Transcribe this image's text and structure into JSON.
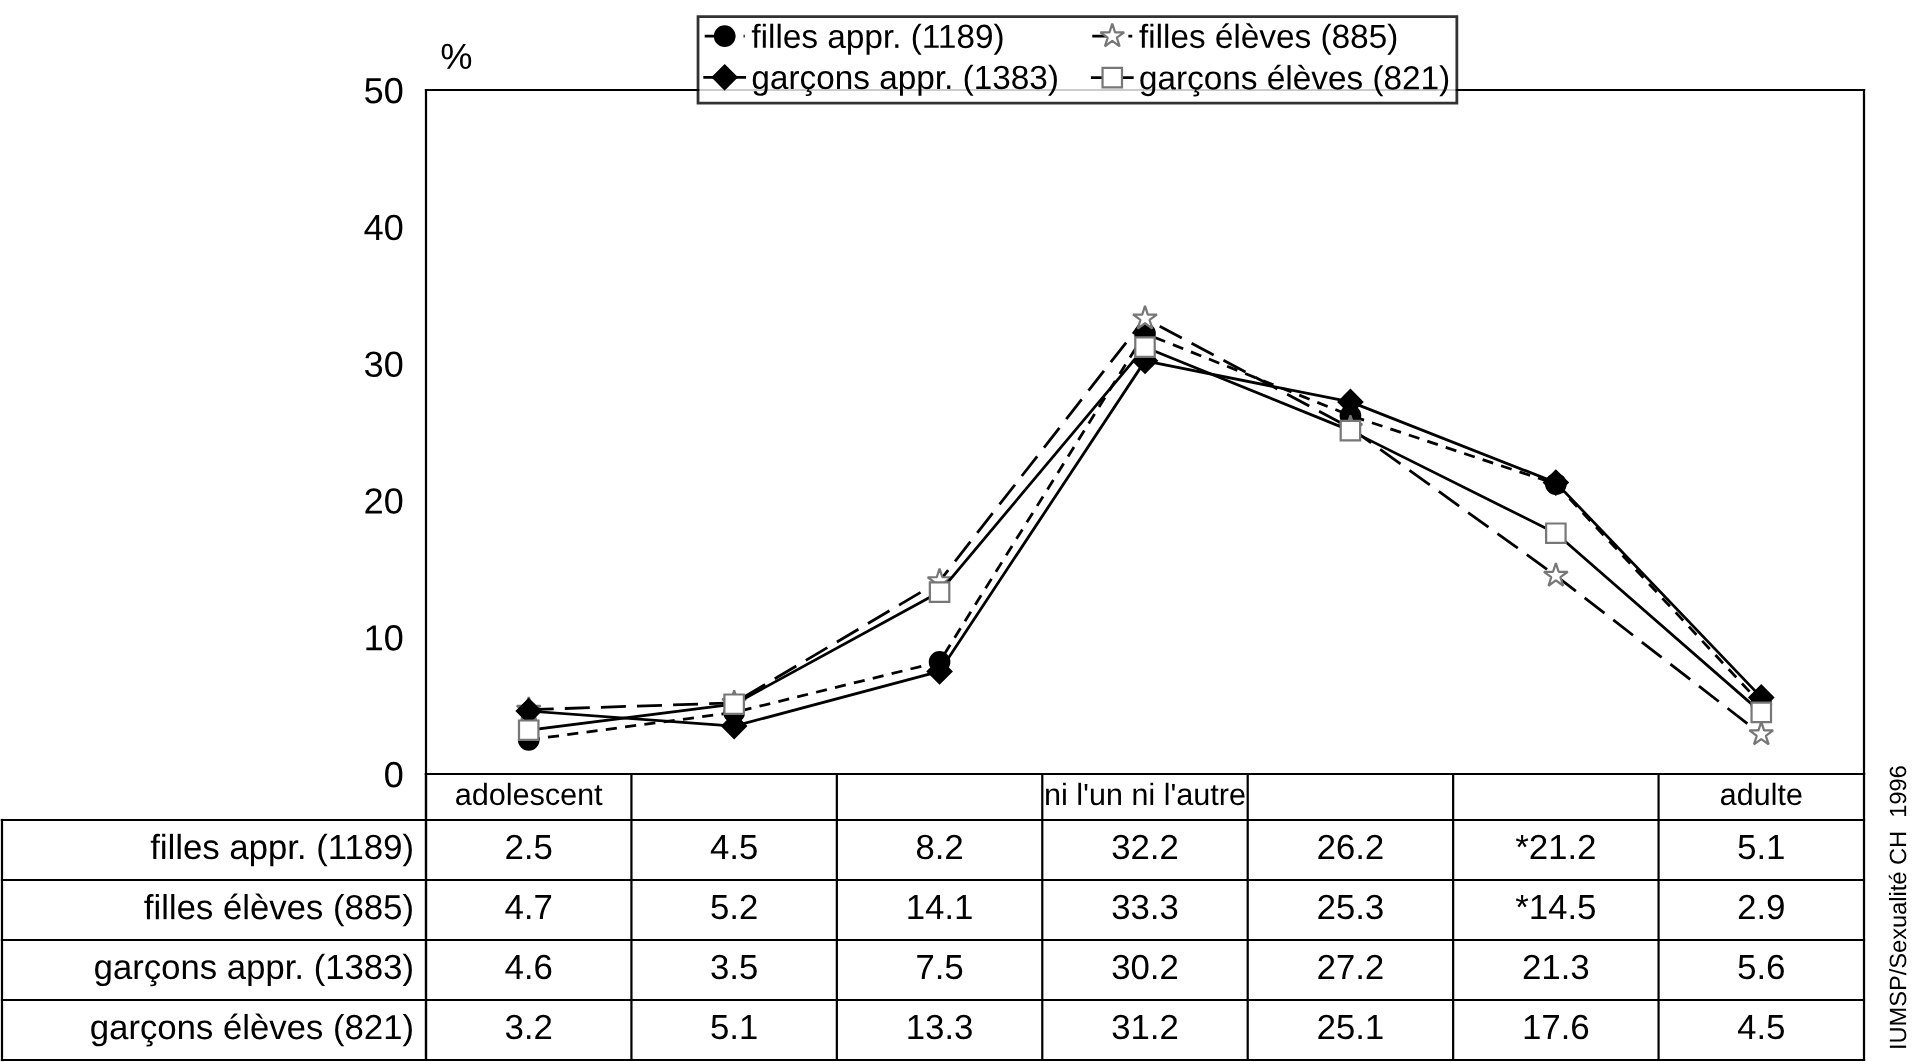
{
  "chart_data": {
    "type": "line",
    "ylabel": "%",
    "categories": [
      "adolescent",
      null,
      null,
      "ni l'un ni l'autre",
      null,
      null,
      "adulte"
    ],
    "ylim": [
      0,
      50
    ],
    "yticks": [
      0,
      10,
      20,
      30,
      40,
      50
    ],
    "grid": false,
    "legend": "top",
    "series": [
      {
        "name": "filles appr. (1189)",
        "color": "#000000",
        "marker": "circle",
        "line_style": "dashed",
        "values": [
          2.5,
          4.5,
          8.2,
          32.2,
          26.2,
          21.2,
          5.1
        ],
        "value_labels": [
          "2.5",
          "4.5",
          "8.2",
          "32.2",
          "26.2",
          "*21.2",
          "5.1"
        ]
      },
      {
        "name": "filles élèves (885)",
        "color": "#000000",
        "marker": "star",
        "line_style": "longdash",
        "values": [
          4.7,
          5.2,
          14.1,
          33.3,
          25.3,
          14.5,
          2.9
        ],
        "value_labels": [
          "4.7",
          "5.2",
          "14.1",
          "33.3",
          "25.3",
          "*14.5",
          "2.9"
        ]
      },
      {
        "name": "garçons appr. (1383)",
        "color": "#000000",
        "marker": "diamond",
        "line_style": "solid",
        "values": [
          4.6,
          3.5,
          7.5,
          30.2,
          27.2,
          21.3,
          5.6
        ],
        "value_labels": [
          "4.6",
          "3.5",
          "7.5",
          "30.2",
          "27.2",
          "21.3",
          "5.6"
        ]
      },
      {
        "name": "garçons élèves (821)",
        "color": "#000000",
        "marker": "square",
        "line_style": "solid",
        "values": [
          3.2,
          5.1,
          13.3,
          31.2,
          25.1,
          17.6,
          4.5
        ],
        "value_labels": [
          "3.2",
          "5.1",
          "13.3",
          "31.2",
          "25.1",
          "17.6",
          "4.5"
        ]
      }
    ],
    "annotations": [
      "IUMSP/Sexualité CH  1996"
    ]
  }
}
